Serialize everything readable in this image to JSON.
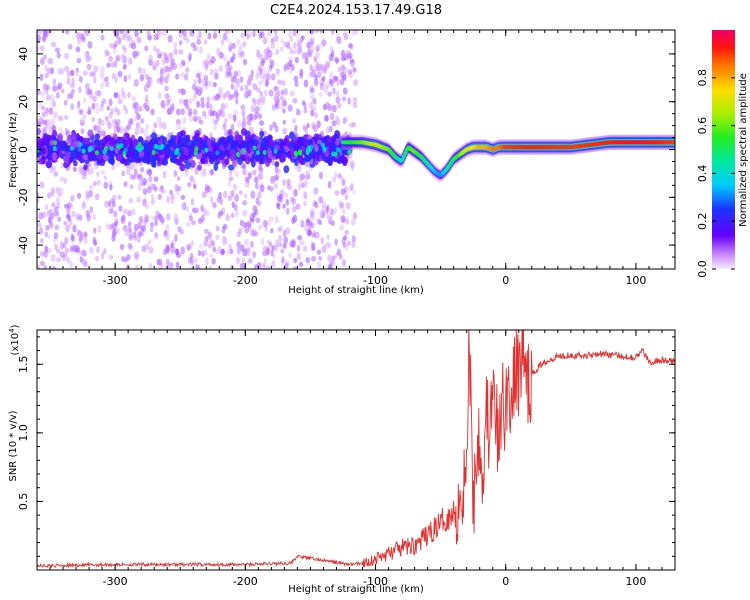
{
  "title": "C2E4.2024.153.17.49.G18",
  "colors": {
    "snr_line": "#e03030",
    "frame": "#000000"
  },
  "chart_data": [
    {
      "type": "heatmap",
      "name": "spectrogram",
      "xlabel": "Height of straight line (km)",
      "ylabel": "Frequency (Hz)",
      "xlim": [
        -360,
        130
      ],
      "ylim": [
        -50,
        50
      ],
      "xticks": [
        -300,
        -200,
        -100,
        0,
        100
      ],
      "xtick_labels": [
        "-300",
        "-200",
        "-100",
        "0",
        "100"
      ],
      "yticks": [
        -40,
        -20,
        0,
        20,
        40
      ],
      "ytick_labels": [
        "-40",
        "-20",
        "0",
        "20",
        "40"
      ],
      "ridge": {
        "x": [
          -125,
          -110,
          -100,
          -90,
          -85,
          -80,
          -75,
          -70,
          -65,
          -60,
          -55,
          -50,
          -45,
          -40,
          -35,
          -30,
          -25,
          -20,
          -15,
          -10,
          -5,
          0,
          20,
          50,
          80,
          100,
          130
        ],
        "y": [
          3,
          3,
          2,
          0,
          -3,
          -5,
          1,
          -1,
          -3,
          -6,
          -9,
          -11,
          -8,
          -4,
          -2,
          0,
          1,
          1,
          1,
          0,
          1,
          1,
          1,
          1,
          3,
          3,
          3
        ],
        "amplitude": [
          0.5,
          0.6,
          0.7,
          0.6,
          0.5,
          0.4,
          0.55,
          0.6,
          0.5,
          0.45,
          0.35,
          0.3,
          0.45,
          0.5,
          0.6,
          0.7,
          0.75,
          0.8,
          0.8,
          0.85,
          0.85,
          0.9,
          0.92,
          0.9,
          0.92,
          0.95,
          0.9
        ]
      },
      "colorbar": {
        "label": "Normalized spectral amplitude",
        "range": [
          0.0,
          1.0
        ],
        "ticks": [
          0.0,
          0.2,
          0.4,
          0.6,
          0.8
        ],
        "tick_labels": [
          "0.0",
          "0.2",
          "0.4",
          "0.6",
          "0.8"
        ]
      }
    },
    {
      "type": "line",
      "name": "snr",
      "xlabel": "Height of straight line (km)",
      "ylabel": "SNR (10 * v/v)",
      "scale_label": "(x10",
      "scale_exponent": "4",
      "scale_close": ")",
      "xlim": [
        -360,
        130
      ],
      "ylim": [
        0.0,
        1.75
      ],
      "xticks": [
        -300,
        -200,
        -100,
        0,
        100
      ],
      "xtick_labels": [
        "-300",
        "-200",
        "-100",
        "0",
        "100"
      ],
      "yticks": [
        0.5,
        1.0,
        1.5
      ],
      "ytick_labels": [
        "0.5",
        "1.0",
        "1.5"
      ],
      "series": [
        {
          "name": "SNR",
          "x": [
            -360,
            -300,
            -200,
            -165,
            -160,
            -120,
            -110,
            -100,
            -90,
            -80,
            -70,
            -60,
            -50,
            -45,
            -40,
            -35,
            -30,
            -28,
            -25,
            -22,
            -20,
            -18,
            -15,
            -12,
            -10,
            -8,
            -5,
            -2,
            0,
            2,
            5,
            8,
            10,
            12,
            13,
            15,
            18,
            20,
            25,
            30,
            40,
            50,
            60,
            70,
            80,
            90,
            100,
            105,
            110,
            120,
            130
          ],
          "y": [
            0.03,
            0.04,
            0.04,
            0.05,
            0.1,
            0.04,
            0.05,
            0.08,
            0.12,
            0.16,
            0.18,
            0.25,
            0.35,
            0.38,
            0.42,
            0.55,
            0.7,
            1.7,
            0.5,
            0.9,
            1.1,
            0.6,
            1.2,
            0.95,
            1.3,
            1.1,
            0.9,
            1.3,
            1.1,
            1.4,
            1.2,
            1.5,
            1.4,
            1.6,
            1.75,
            1.3,
            1.4,
            1.42,
            1.48,
            1.52,
            1.56,
            1.57,
            1.56,
            1.58,
            1.57,
            1.56,
            1.55,
            1.6,
            1.52,
            1.53,
            1.52
          ]
        }
      ]
    }
  ]
}
